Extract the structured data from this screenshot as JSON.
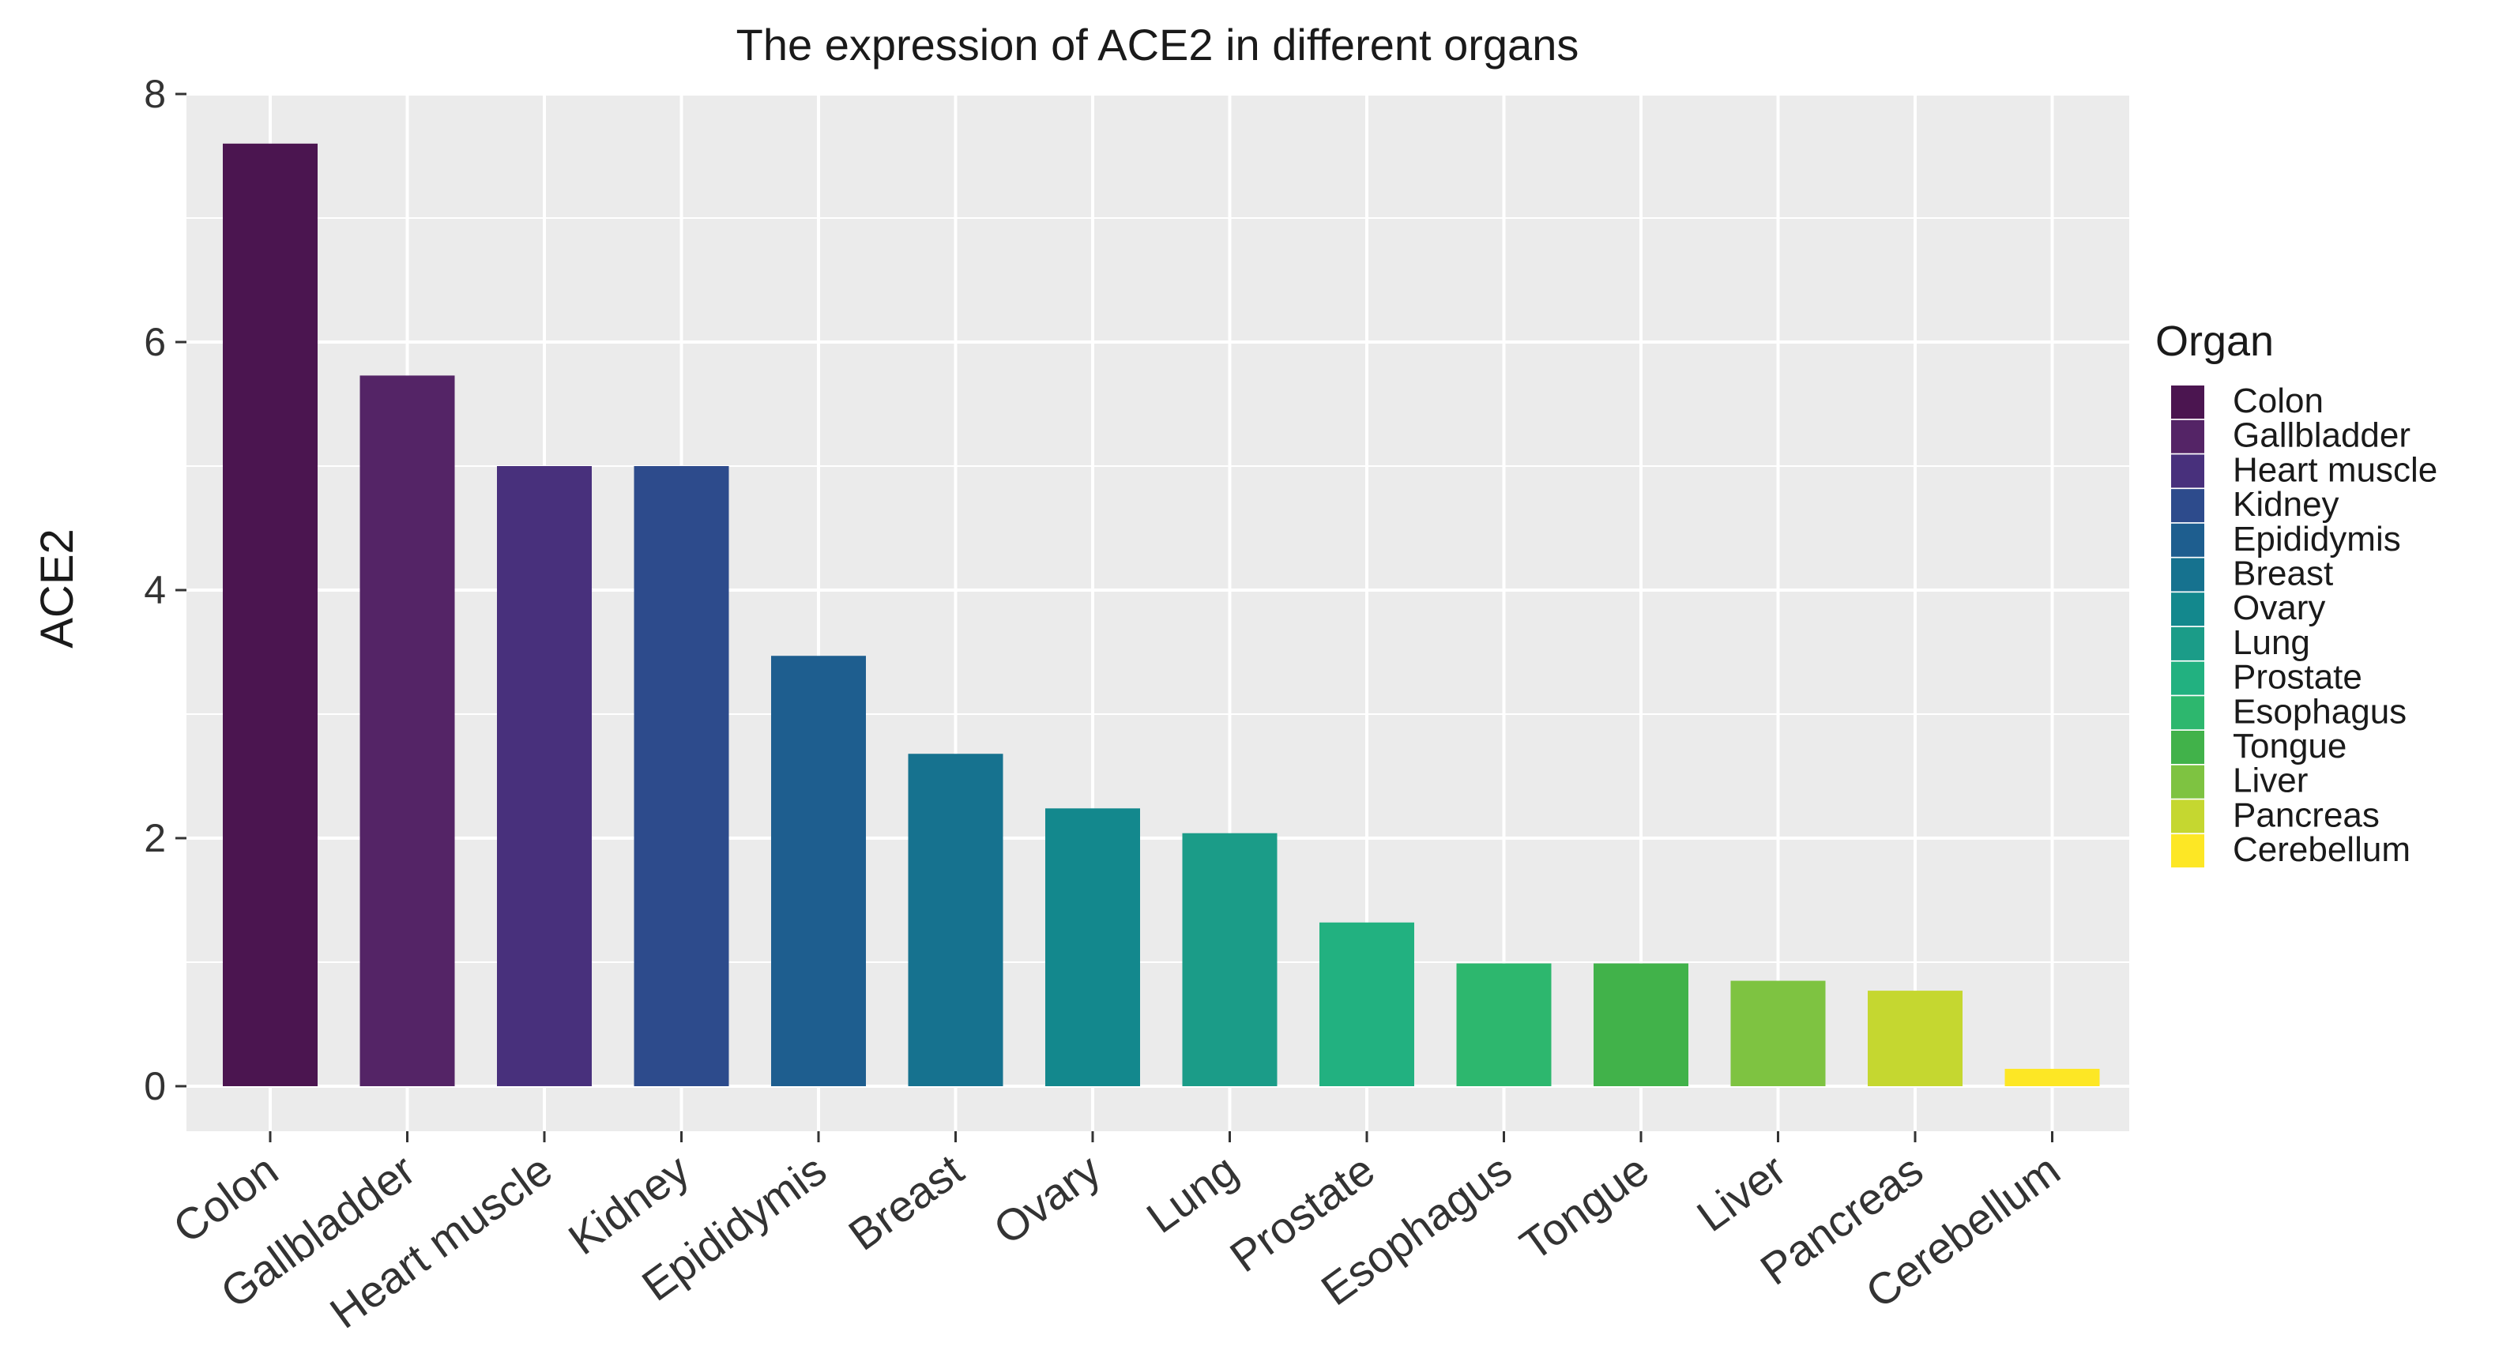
{
  "chart_data": {
    "type": "bar",
    "title": "The expression of ACE2 in different organs",
    "xlabel": "",
    "ylabel": "ACE2",
    "ylim": [
      -0.35,
      8.0
    ],
    "yticks": [
      0,
      2,
      4,
      6,
      8
    ],
    "ytick_labels": [
      "0",
      "2",
      "4",
      "6",
      "8"
    ],
    "grid": true,
    "categories": [
      "Colon",
      "Gallbladder",
      "Heart muscle",
      "Kidney",
      "Epididymis",
      "Breast",
      "Ovary",
      "Lung",
      "Prostate",
      "Esophagus",
      "Tongue",
      "Liver",
      "Pancreas",
      "Cerebellum"
    ],
    "values": [
      7.6,
      5.73,
      5.0,
      5.0,
      3.47,
      2.68,
      2.24,
      2.04,
      1.32,
      0.99,
      0.99,
      0.85,
      0.77,
      0.14
    ],
    "colors": [
      "#4b1550",
      "#542466",
      "#48307c",
      "#2d4b8c",
      "#1e5e8f",
      "#16728f",
      "#13888d",
      "#1b9c88",
      "#22b180",
      "#2db76e",
      "#41b24a",
      "#7ec341",
      "#c5d730",
      "#fde725"
    ],
    "legend": {
      "title": "Organ",
      "position": "right",
      "entries": [
        "Colon",
        "Gallbladder",
        "Heart muscle",
        "Kidney",
        "Epididymis",
        "Breast",
        "Ovary",
        "Lung",
        "Prostate",
        "Esophagus",
        "Tongue",
        "Liver",
        "Pancreas",
        "Cerebellum"
      ]
    },
    "panel_background": "#ebebeb",
    "grid_color": "#ffffff"
  }
}
